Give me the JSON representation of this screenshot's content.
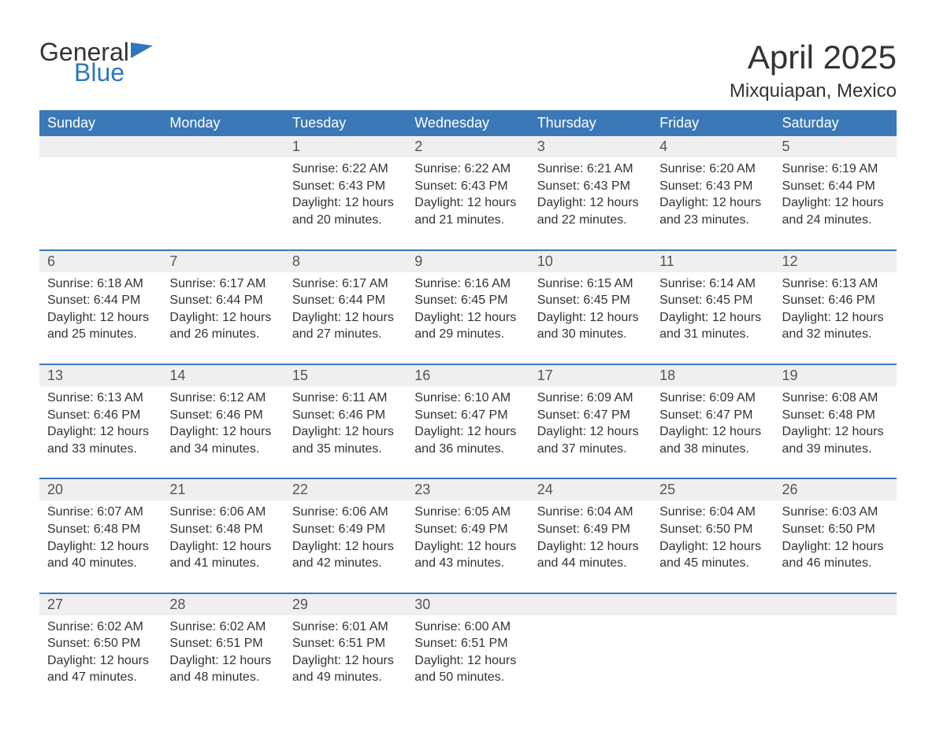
{
  "brand": {
    "general": "General",
    "blue": "Blue"
  },
  "title": {
    "month": "April 2025",
    "location": "Mixquiapan, Mexico"
  },
  "day_headers": [
    "Sunday",
    "Monday",
    "Tuesday",
    "Wednesday",
    "Thursday",
    "Friday",
    "Saturday"
  ],
  "labels": {
    "sunrise": "Sunrise: ",
    "sunset": "Sunset: ",
    "daylight": "Daylight: "
  },
  "colors": {
    "header_bg": "#3b78b8",
    "header_text": "#ffffff",
    "daynum_bg": "#efefef",
    "rule": "#3b78b8",
    "text": "#333333",
    "logo_blue": "#2f77bc"
  },
  "fonts": {
    "title_month_size": 42,
    "location_size": 24,
    "header_size": 18,
    "body_size": 16
  },
  "weeks": [
    [
      null,
      null,
      {
        "n": "1",
        "sunrise": "6:22 AM",
        "sunset": "6:43 PM",
        "daylight": "12 hours and 20 minutes."
      },
      {
        "n": "2",
        "sunrise": "6:22 AM",
        "sunset": "6:43 PM",
        "daylight": "12 hours and 21 minutes."
      },
      {
        "n": "3",
        "sunrise": "6:21 AM",
        "sunset": "6:43 PM",
        "daylight": "12 hours and 22 minutes."
      },
      {
        "n": "4",
        "sunrise": "6:20 AM",
        "sunset": "6:43 PM",
        "daylight": "12 hours and 23 minutes."
      },
      {
        "n": "5",
        "sunrise": "6:19 AM",
        "sunset": "6:44 PM",
        "daylight": "12 hours and 24 minutes."
      }
    ],
    [
      {
        "n": "6",
        "sunrise": "6:18 AM",
        "sunset": "6:44 PM",
        "daylight": "12 hours and 25 minutes."
      },
      {
        "n": "7",
        "sunrise": "6:17 AM",
        "sunset": "6:44 PM",
        "daylight": "12 hours and 26 minutes."
      },
      {
        "n": "8",
        "sunrise": "6:17 AM",
        "sunset": "6:44 PM",
        "daylight": "12 hours and 27 minutes."
      },
      {
        "n": "9",
        "sunrise": "6:16 AM",
        "sunset": "6:45 PM",
        "daylight": "12 hours and 29 minutes."
      },
      {
        "n": "10",
        "sunrise": "6:15 AM",
        "sunset": "6:45 PM",
        "daylight": "12 hours and 30 minutes."
      },
      {
        "n": "11",
        "sunrise": "6:14 AM",
        "sunset": "6:45 PM",
        "daylight": "12 hours and 31 minutes."
      },
      {
        "n": "12",
        "sunrise": "6:13 AM",
        "sunset": "6:46 PM",
        "daylight": "12 hours and 32 minutes."
      }
    ],
    [
      {
        "n": "13",
        "sunrise": "6:13 AM",
        "sunset": "6:46 PM",
        "daylight": "12 hours and 33 minutes."
      },
      {
        "n": "14",
        "sunrise": "6:12 AM",
        "sunset": "6:46 PM",
        "daylight": "12 hours and 34 minutes."
      },
      {
        "n": "15",
        "sunrise": "6:11 AM",
        "sunset": "6:46 PM",
        "daylight": "12 hours and 35 minutes."
      },
      {
        "n": "16",
        "sunrise": "6:10 AM",
        "sunset": "6:47 PM",
        "daylight": "12 hours and 36 minutes."
      },
      {
        "n": "17",
        "sunrise": "6:09 AM",
        "sunset": "6:47 PM",
        "daylight": "12 hours and 37 minutes."
      },
      {
        "n": "18",
        "sunrise": "6:09 AM",
        "sunset": "6:47 PM",
        "daylight": "12 hours and 38 minutes."
      },
      {
        "n": "19",
        "sunrise": "6:08 AM",
        "sunset": "6:48 PM",
        "daylight": "12 hours and 39 minutes."
      }
    ],
    [
      {
        "n": "20",
        "sunrise": "6:07 AM",
        "sunset": "6:48 PM",
        "daylight": "12 hours and 40 minutes."
      },
      {
        "n": "21",
        "sunrise": "6:06 AM",
        "sunset": "6:48 PM",
        "daylight": "12 hours and 41 minutes."
      },
      {
        "n": "22",
        "sunrise": "6:06 AM",
        "sunset": "6:49 PM",
        "daylight": "12 hours and 42 minutes."
      },
      {
        "n": "23",
        "sunrise": "6:05 AM",
        "sunset": "6:49 PM",
        "daylight": "12 hours and 43 minutes."
      },
      {
        "n": "24",
        "sunrise": "6:04 AM",
        "sunset": "6:49 PM",
        "daylight": "12 hours and 44 minutes."
      },
      {
        "n": "25",
        "sunrise": "6:04 AM",
        "sunset": "6:50 PM",
        "daylight": "12 hours and 45 minutes."
      },
      {
        "n": "26",
        "sunrise": "6:03 AM",
        "sunset": "6:50 PM",
        "daylight": "12 hours and 46 minutes."
      }
    ],
    [
      {
        "n": "27",
        "sunrise": "6:02 AM",
        "sunset": "6:50 PM",
        "daylight": "12 hours and 47 minutes."
      },
      {
        "n": "28",
        "sunrise": "6:02 AM",
        "sunset": "6:51 PM",
        "daylight": "12 hours and 48 minutes."
      },
      {
        "n": "29",
        "sunrise": "6:01 AM",
        "sunset": "6:51 PM",
        "daylight": "12 hours and 49 minutes."
      },
      {
        "n": "30",
        "sunrise": "6:00 AM",
        "sunset": "6:51 PM",
        "daylight": "12 hours and 50 minutes."
      },
      null,
      null,
      null
    ]
  ]
}
